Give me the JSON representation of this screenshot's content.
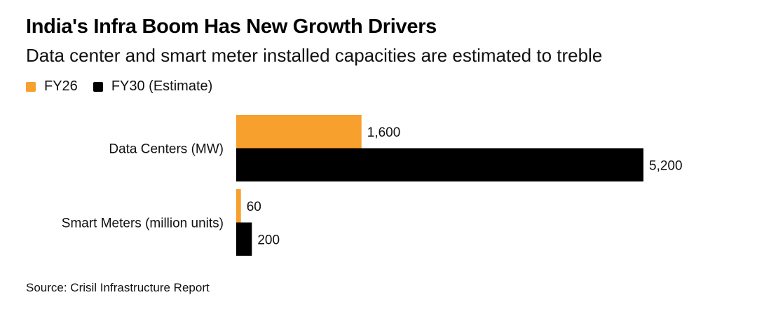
{
  "header": {
    "title": "India's Infra Boom Has New Growth Drivers",
    "subtitle": "Data center and smart meter installed capacities are estimated to treble"
  },
  "legend": [
    {
      "label": "FY26",
      "color": "#F7A02D"
    },
    {
      "label": "FY30 (Estimate)",
      "color": "#000000"
    }
  ],
  "footer": {
    "source": "Source: Crisil Infrastructure Report"
  },
  "chart_data": {
    "type": "bar",
    "orientation": "horizontal",
    "title": "India's Infra Boom Has New Growth Drivers",
    "subtitle": "Data center and smart meter installed capacities are estimated to treble",
    "categories": [
      "Data Centers (MW)",
      "Smart Meters (million units)"
    ],
    "series": [
      {
        "name": "FY26",
        "color": "#F7A02D",
        "values": [
          1600,
          60
        ],
        "labels": [
          "1,600",
          "60"
        ]
      },
      {
        "name": "FY30 (Estimate)",
        "color": "#000000",
        "values": [
          5200,
          200
        ],
        "labels": [
          "5,200",
          "200"
        ]
      }
    ],
    "xlabel": "",
    "ylabel": "",
    "xlim": [
      0,
      5200
    ],
    "grid": false,
    "legend_position": "top-left",
    "source": "Source: Crisil Infrastructure Report"
  }
}
